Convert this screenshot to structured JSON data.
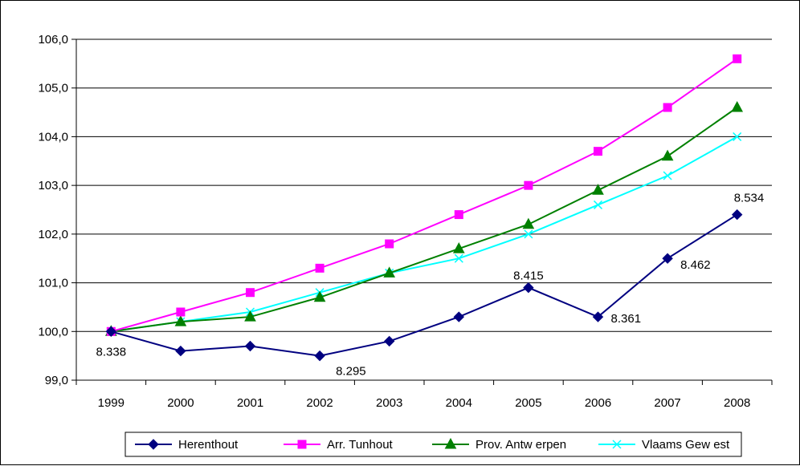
{
  "chart_data": {
    "type": "line",
    "categories": [
      "1999",
      "2000",
      "2001",
      "2002",
      "2003",
      "2004",
      "2005",
      "2006",
      "2007",
      "2008"
    ],
    "ylim": [
      99.0,
      106.0
    ],
    "y_ticks": [
      "99,0",
      "100,0",
      "101,0",
      "102,0",
      "103,0",
      "104,0",
      "105,0",
      "106,0"
    ],
    "grid": "horizontal",
    "legend_position": "bottom",
    "series": [
      {
        "name": "Herenthout",
        "color": "#000080",
        "marker": "diamond",
        "values": [
          100.0,
          99.6,
          99.7,
          99.5,
          99.8,
          100.3,
          100.9,
          100.3,
          101.5,
          102.4
        ]
      },
      {
        "name": "Arr. Tunhout",
        "color": "#ff00ff",
        "marker": "square",
        "values": [
          100.0,
          100.4,
          100.8,
          101.3,
          101.8,
          102.4,
          103.0,
          103.7,
          104.6,
          105.6
        ]
      },
      {
        "name": "Prov. Antw erpen",
        "color": "#008000",
        "marker": "triangle",
        "values": [
          100.0,
          100.2,
          100.3,
          100.7,
          101.2,
          101.7,
          102.2,
          102.9,
          103.6,
          104.6
        ]
      },
      {
        "name": "Vlaams Gew est",
        "color": "#00ffff",
        "marker": "x",
        "values": [
          100.0,
          100.2,
          100.4,
          100.8,
          101.2,
          101.5,
          102.0,
          102.6,
          103.2,
          104.0
        ]
      }
    ],
    "annotations": [
      {
        "series": 0,
        "index": 0,
        "text": "8.338",
        "anchor": "below"
      },
      {
        "series": 0,
        "index": 3,
        "text": "8.295",
        "anchor": "below-right"
      },
      {
        "series": 0,
        "index": 6,
        "text": "8.415",
        "anchor": "above"
      },
      {
        "series": 0,
        "index": 7,
        "text": "8.361",
        "anchor": "right"
      },
      {
        "series": 0,
        "index": 8,
        "text": "8.462",
        "anchor": "right-below"
      },
      {
        "series": 0,
        "index": 9,
        "text": "8.534",
        "anchor": "above-right"
      }
    ]
  }
}
